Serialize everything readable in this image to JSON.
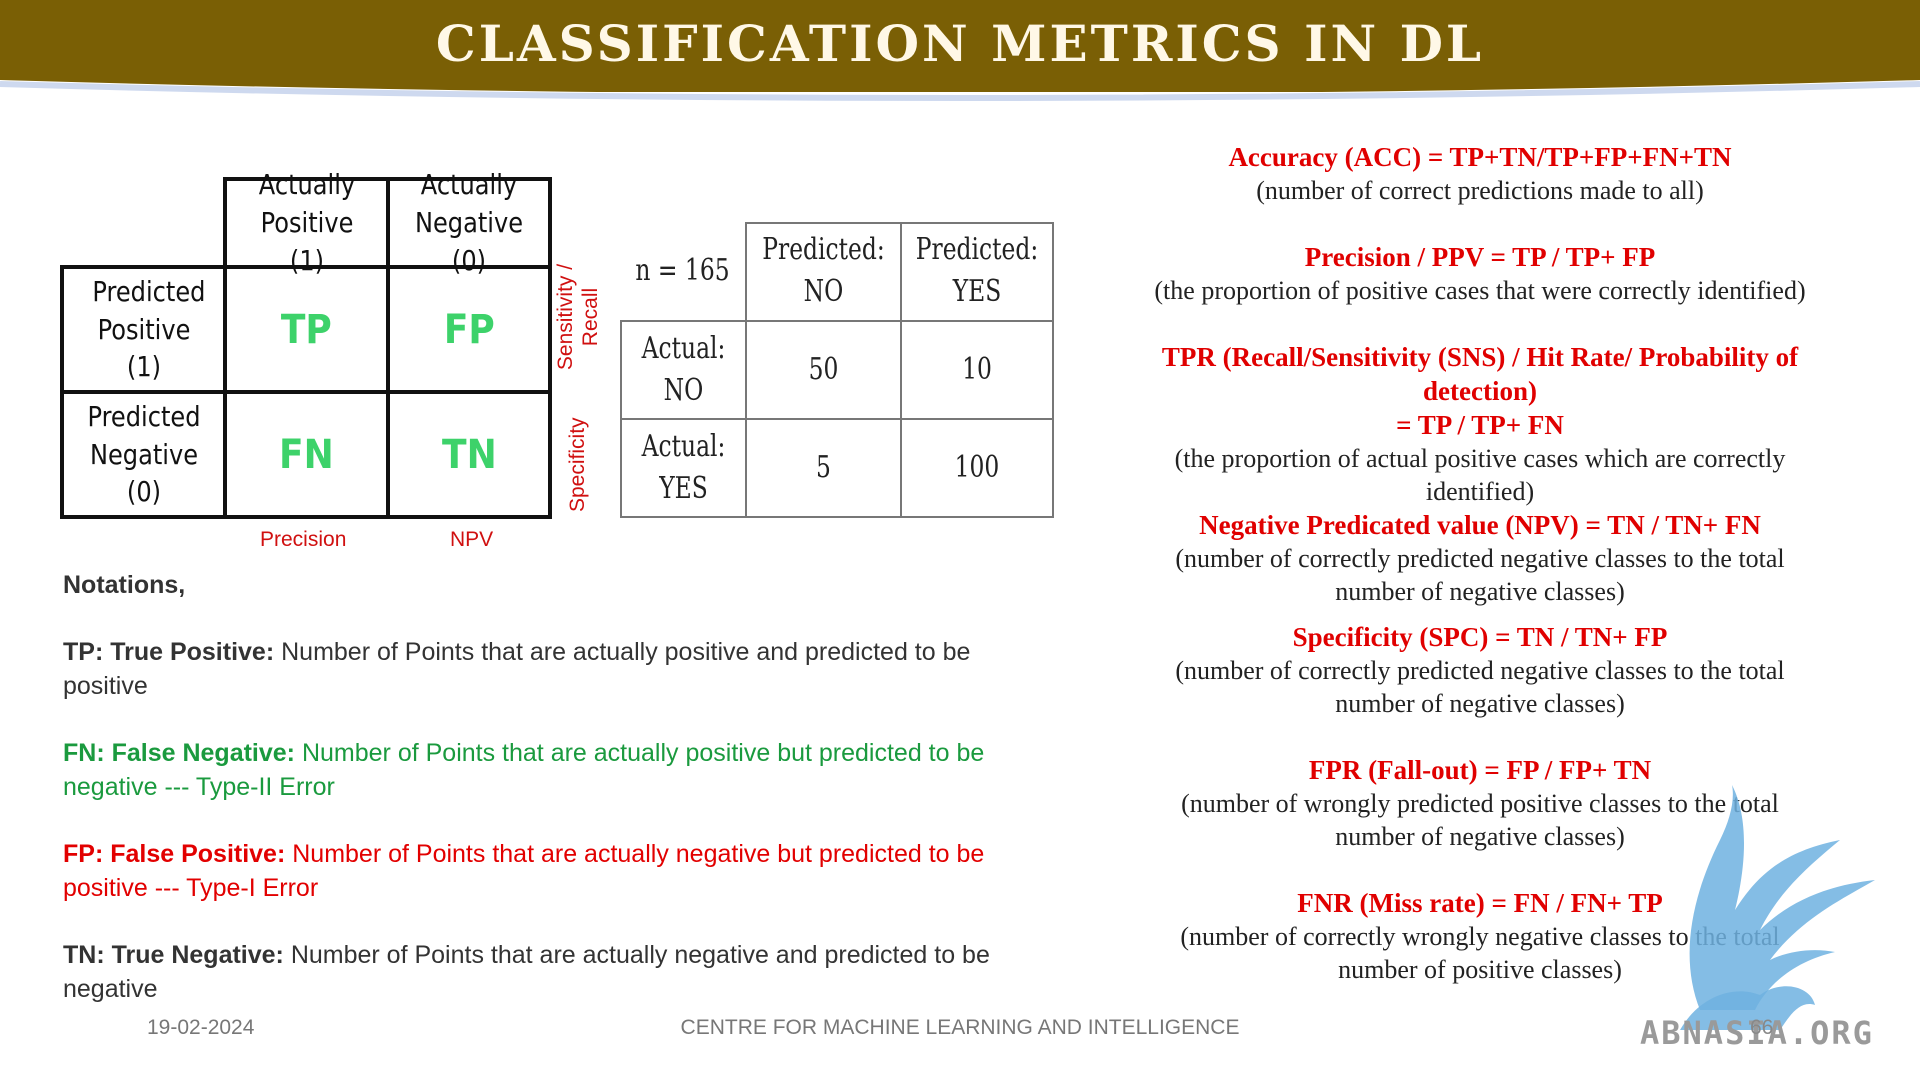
{
  "title": "CLASSIFICATION METRICS IN DL",
  "matrix1": {
    "col_headers": [
      "Actually Positive (1)",
      "Actually Negative (0)"
    ],
    "row_headers": [
      "Predicted Positive (1)",
      "Predicted Negative (0)"
    ],
    "cells": [
      "TP",
      "FP",
      "FN",
      "TN"
    ],
    "side_labels": [
      "Sensitivity / Recall",
      "Specificity"
    ],
    "bottom_labels": [
      "Precision",
      "NPV"
    ]
  },
  "matrix2": {
    "n_label": "n = 165",
    "col_headers": [
      "Predicted: NO",
      "Predicted: YES"
    ],
    "row_headers": [
      "Actual: NO",
      "Actual: YES"
    ],
    "values": [
      "50",
      "10",
      "5",
      "100"
    ]
  },
  "notations": {
    "heading": "Notations,",
    "tp_term": "TP: True Positive:",
    "tp_desc": " Number of Points that are actually positive and predicted to be positive",
    "fn_term": "FN: False Negative:",
    "fn_desc": " Number of Points that are actually positive but predicted to be negative --- Type-II Error",
    "fp_term": "FP: False Positive:",
    "fp_desc": " Number of Points that are actually negative but predicted to be positive  --- Type-I Error",
    "tn_term": "TN: True Negative:",
    "tn_desc": " Number of Points that are actually negative and predicted to be negative"
  },
  "formulas": [
    {
      "title": "Accuracy (ACC) = TP+TN/TP+FP+FN+TN",
      "desc": "(number of correct predictions made to all)"
    },
    {
      "title": "Precision / PPV  = TP / TP+ FP",
      "desc": "(the proportion of positive cases that were correctly identified)"
    },
    {
      "title": "TPR (Recall/Sensitivity (SNS) / Hit Rate/ Probability of detection)",
      "title2": "= TP / TP+ FN",
      "desc": "(the proportion of actual positive cases which are correctly identified)"
    },
    {
      "title": "Negative Predicated value (NPV)  = TN / TN+ FN",
      "desc": "(number of correctly predicted negative classes to the total number of negative classes)"
    },
    {
      "title": "Specificity (SPC) = TN / TN+ FP",
      "desc": "(number of correctly predicted negative classes to the total number of negative classes)"
    },
    {
      "title": "FPR (Fall-out) = FP / FP+ TN",
      "desc": "(number of wrongly predicted positive classes to the total number of negative classes)"
    },
    {
      "title": "FNR (Miss rate) = FN / FN+ TP",
      "desc": "(number of correctly wrongly negative classes to the total number of positive classes)"
    }
  ],
  "footer": {
    "date": "19-02-2024",
    "center": "CENTRE FOR MACHINE LEARNING AND INTELLIGENCE",
    "page": "66",
    "watermark": "ABNASIA.ORG"
  },
  "colors": {
    "title_bar": "#7a5f05",
    "accent_red": "#e00000",
    "accent_green": "#1a9a3e",
    "cell_green": "#3dd26a"
  }
}
